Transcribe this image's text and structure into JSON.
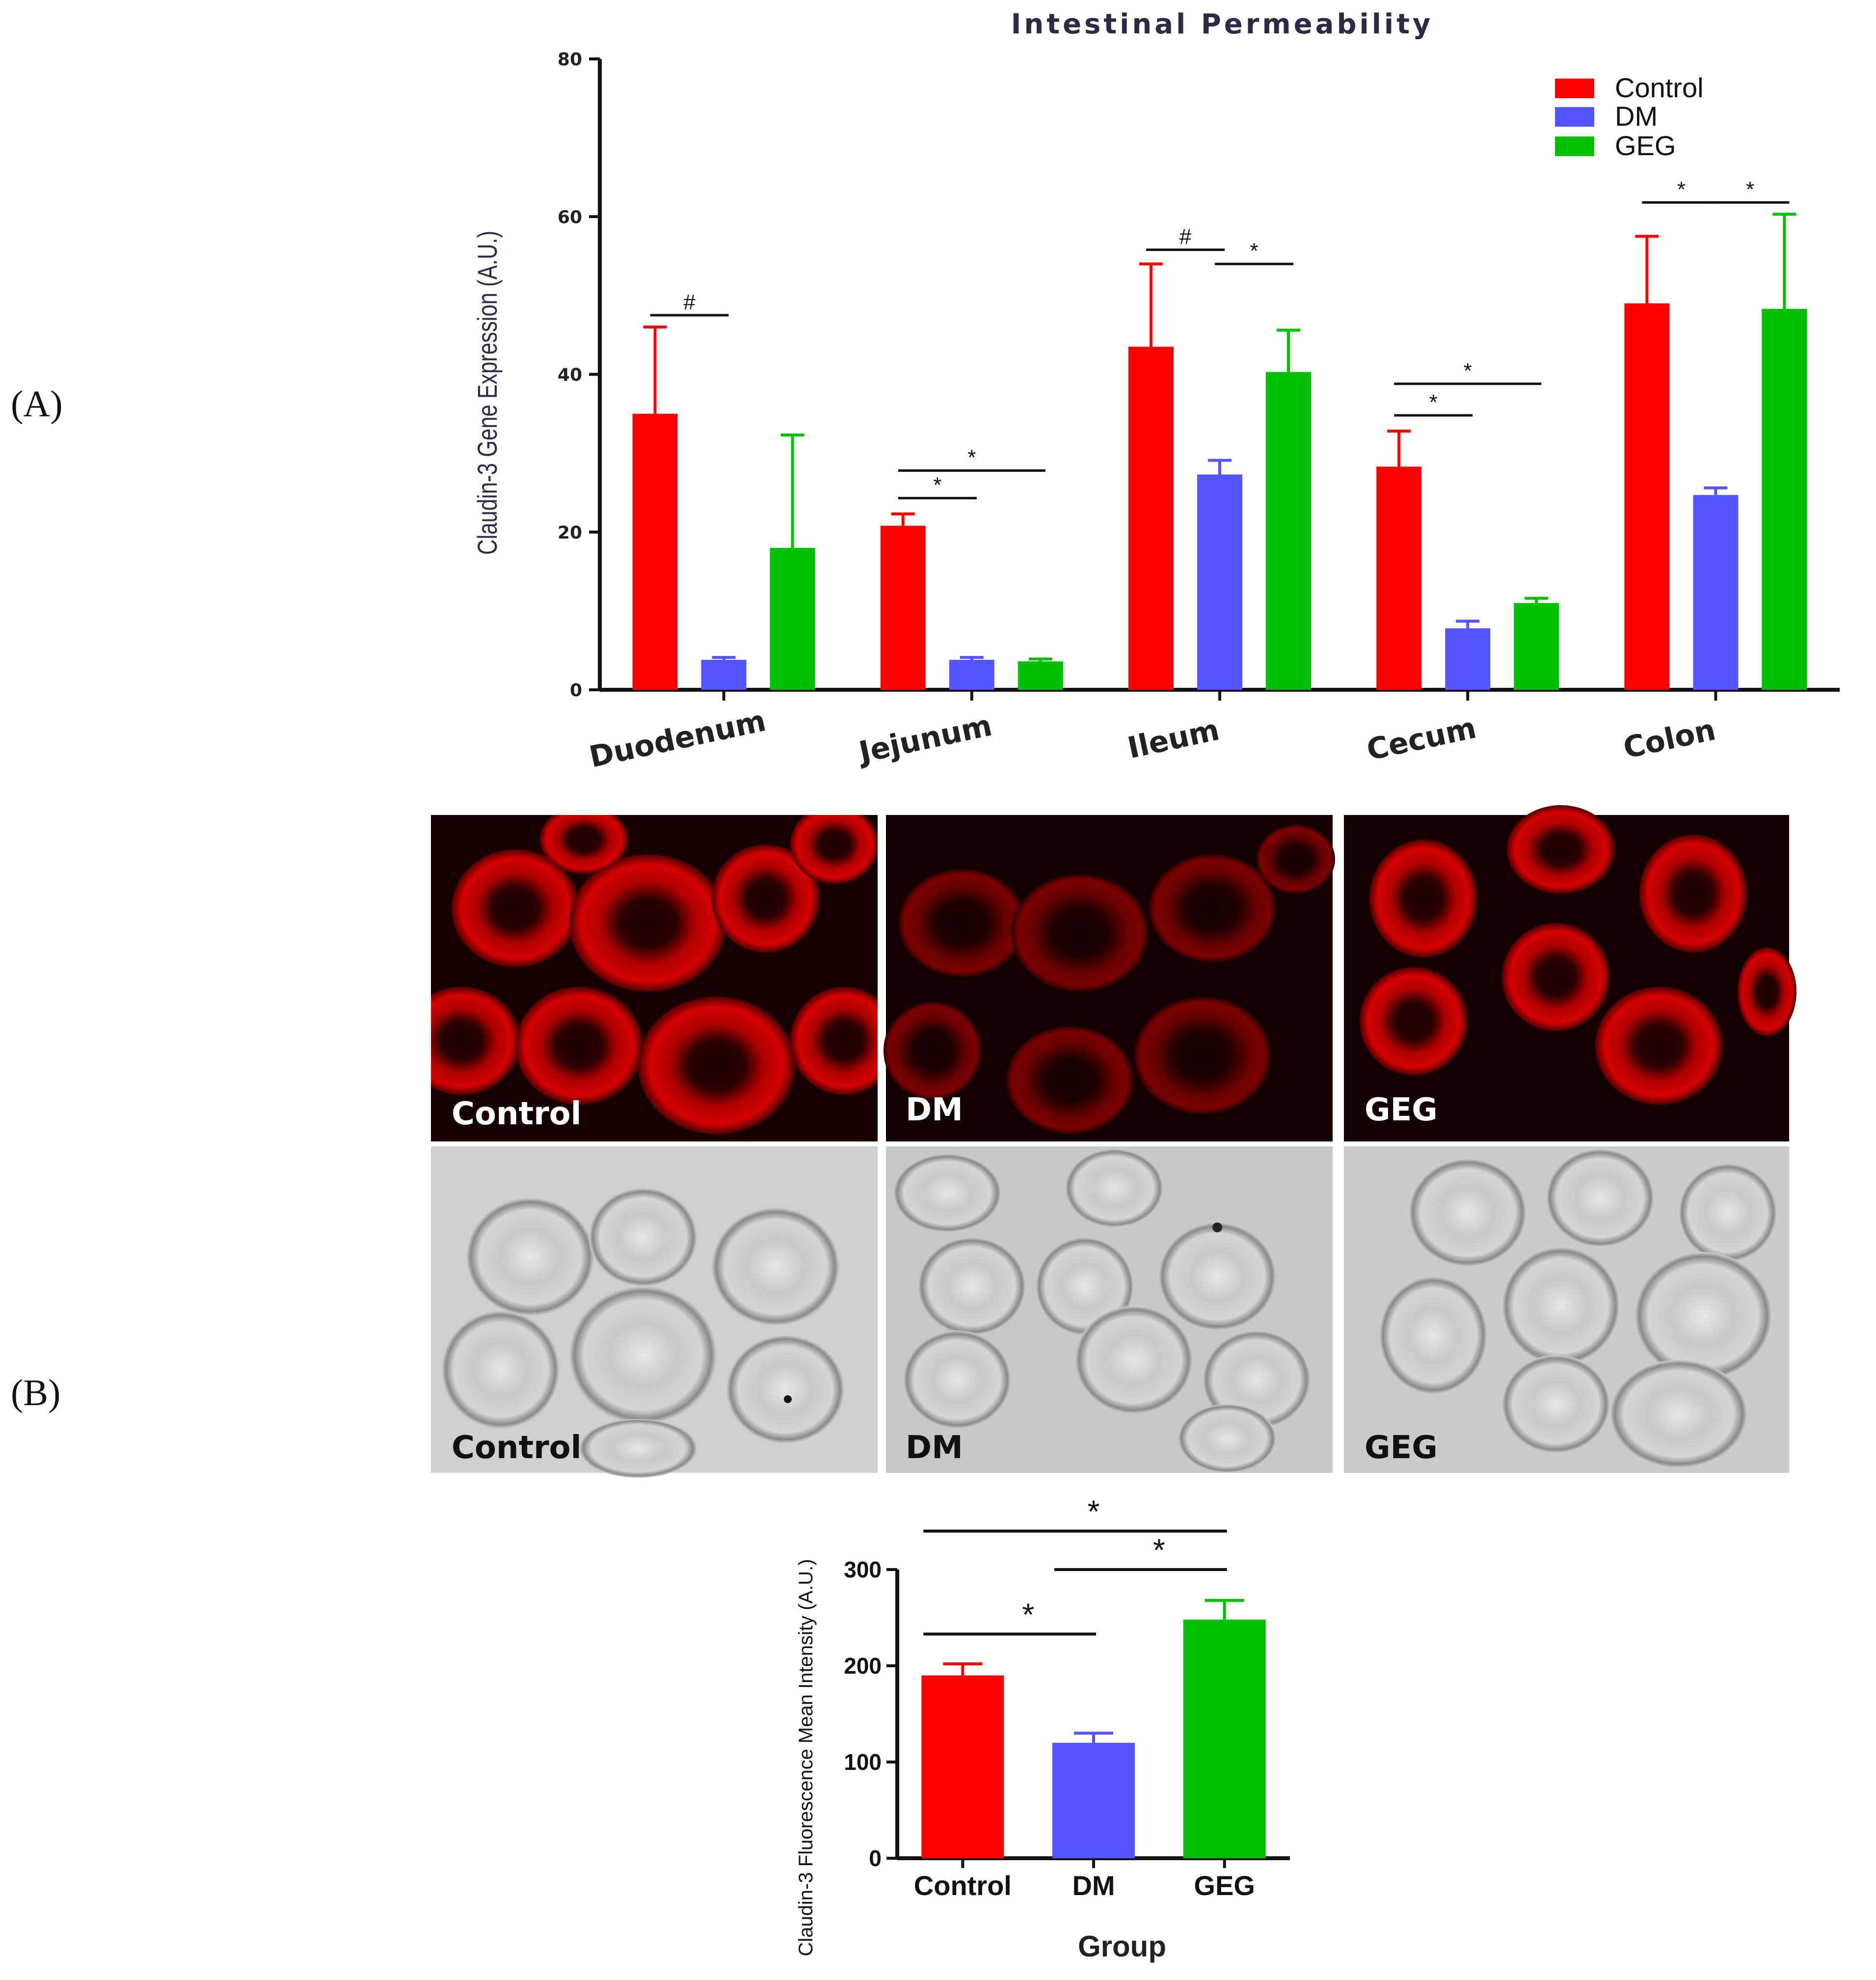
{
  "panels": {
    "a_label": "(A)",
    "b_label": "(B)"
  },
  "colors": {
    "control": "#ff0000",
    "dm": "#5555ff",
    "geg": "#00c000",
    "axis": "#111111"
  },
  "chart_data": [
    {
      "type": "bar",
      "title": "Intestinal  Permeability",
      "xlabel": "",
      "ylabel": "Claudin-3 Gene Expression (A.U.)",
      "ylim": [
        0,
        80
      ],
      "yticks": [
        0,
        20,
        40,
        60,
        80
      ],
      "categories": [
        "Duodenum",
        "Jejunum",
        "Ileum",
        "Cecum",
        "Colon"
      ],
      "series": [
        {
          "name": "Control",
          "values": [
            35,
            20.8,
            43.5,
            28.3,
            49
          ],
          "errors": [
            11,
            1.5,
            10.5,
            4.5,
            8.5
          ]
        },
        {
          "name": "DM",
          "values": [
            3.8,
            3.8,
            27.3,
            7.8,
            24.7
          ],
          "errors": [
            0.3,
            0.3,
            1.8,
            0.9,
            0.9
          ]
        },
        {
          "name": "GEG",
          "values": [
            18,
            3.6,
            40.3,
            11,
            48.3
          ],
          "errors": [
            14.3,
            0.3,
            5.3,
            0.6,
            12
          ]
        }
      ],
      "legend": {
        "position": "top-right",
        "entries": [
          "Control",
          "DM",
          "GEG"
        ]
      },
      "significance": [
        {
          "category": "Duodenum",
          "from": "Control",
          "to": "DM",
          "mark": "#",
          "y": 47.5
        },
        {
          "category": "Jejunum",
          "from": "Control",
          "to": "DM",
          "mark": "*",
          "y": 24.3
        },
        {
          "category": "Jejunum",
          "from": "Control",
          "to": "GEG",
          "mark": "*",
          "y": 27.8
        },
        {
          "category": "Ileum",
          "from": "Control",
          "to": "DM",
          "mark": "#",
          "y": 55.8
        },
        {
          "category": "Ileum",
          "from": "DM",
          "to": "GEG",
          "mark": "*",
          "y": 54
        },
        {
          "category": "Cecum",
          "from": "Control",
          "to": "DM",
          "mark": "*",
          "y": 34.8
        },
        {
          "category": "Cecum",
          "from": "Control",
          "to": "GEG",
          "mark": "*",
          "y": 38.8
        },
        {
          "category": "Colon",
          "from": "Control",
          "to": "DM",
          "mark": "*",
          "y": 61.8
        },
        {
          "category": "Colon",
          "from": "DM",
          "to": "GEG",
          "mark": "*",
          "y": 61.8
        }
      ]
    },
    {
      "type": "bar",
      "title": "",
      "xlabel": "Group",
      "ylabel": "Claudin-3 Fluorescence Mean Intensity (A.U.)",
      "ylim": [
        0,
        300
      ],
      "yticks": [
        0,
        100,
        200,
        300
      ],
      "categories": [
        "Control",
        "DM",
        "GEG"
      ],
      "values": [
        190,
        120,
        248
      ],
      "errors": [
        12,
        10,
        20
      ],
      "significance": [
        {
          "from": "Control",
          "to": "DM",
          "mark": "*",
          "y": 233
        },
        {
          "from": "DM",
          "to": "GEG",
          "mark": "*",
          "y": 300
        },
        {
          "from": "Control",
          "to": "GEG",
          "mark": "*",
          "y": 340
        }
      ]
    }
  ],
  "micrographs": {
    "fluorescence": [
      "Control",
      "DM",
      "GEG"
    ],
    "brightfield": [
      "Control",
      "DM",
      "GEG"
    ]
  }
}
